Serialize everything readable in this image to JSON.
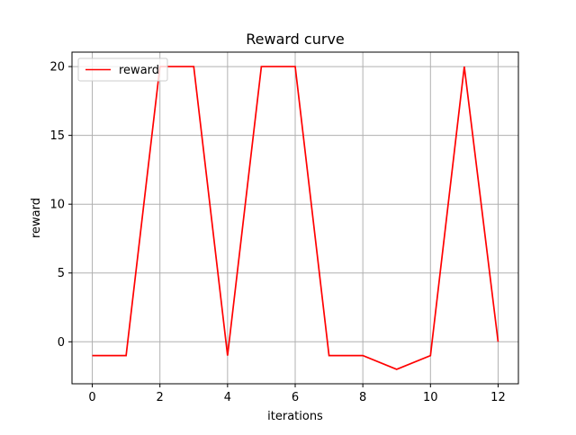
{
  "chart_data": {
    "type": "line",
    "title": "Reward curve",
    "xlabel": "iterations",
    "ylabel": "reward",
    "xlim": [
      -0.6,
      12.6
    ],
    "ylim": [
      -3.05,
      21.05
    ],
    "xticks": [
      0,
      2,
      4,
      6,
      8,
      10,
      12
    ],
    "yticks": [
      0,
      5,
      10,
      15,
      20
    ],
    "grid": true,
    "legend_position": "top-left",
    "series": [
      {
        "name": "reward",
        "color": "#ff0000",
        "x": [
          0,
          1,
          2,
          3,
          4,
          5,
          6,
          7,
          8,
          9,
          10,
          11,
          12
        ],
        "y": [
          -1,
          -1,
          20,
          20,
          -1,
          20,
          20,
          -1,
          -1,
          -2,
          -1,
          20,
          0
        ]
      }
    ]
  }
}
